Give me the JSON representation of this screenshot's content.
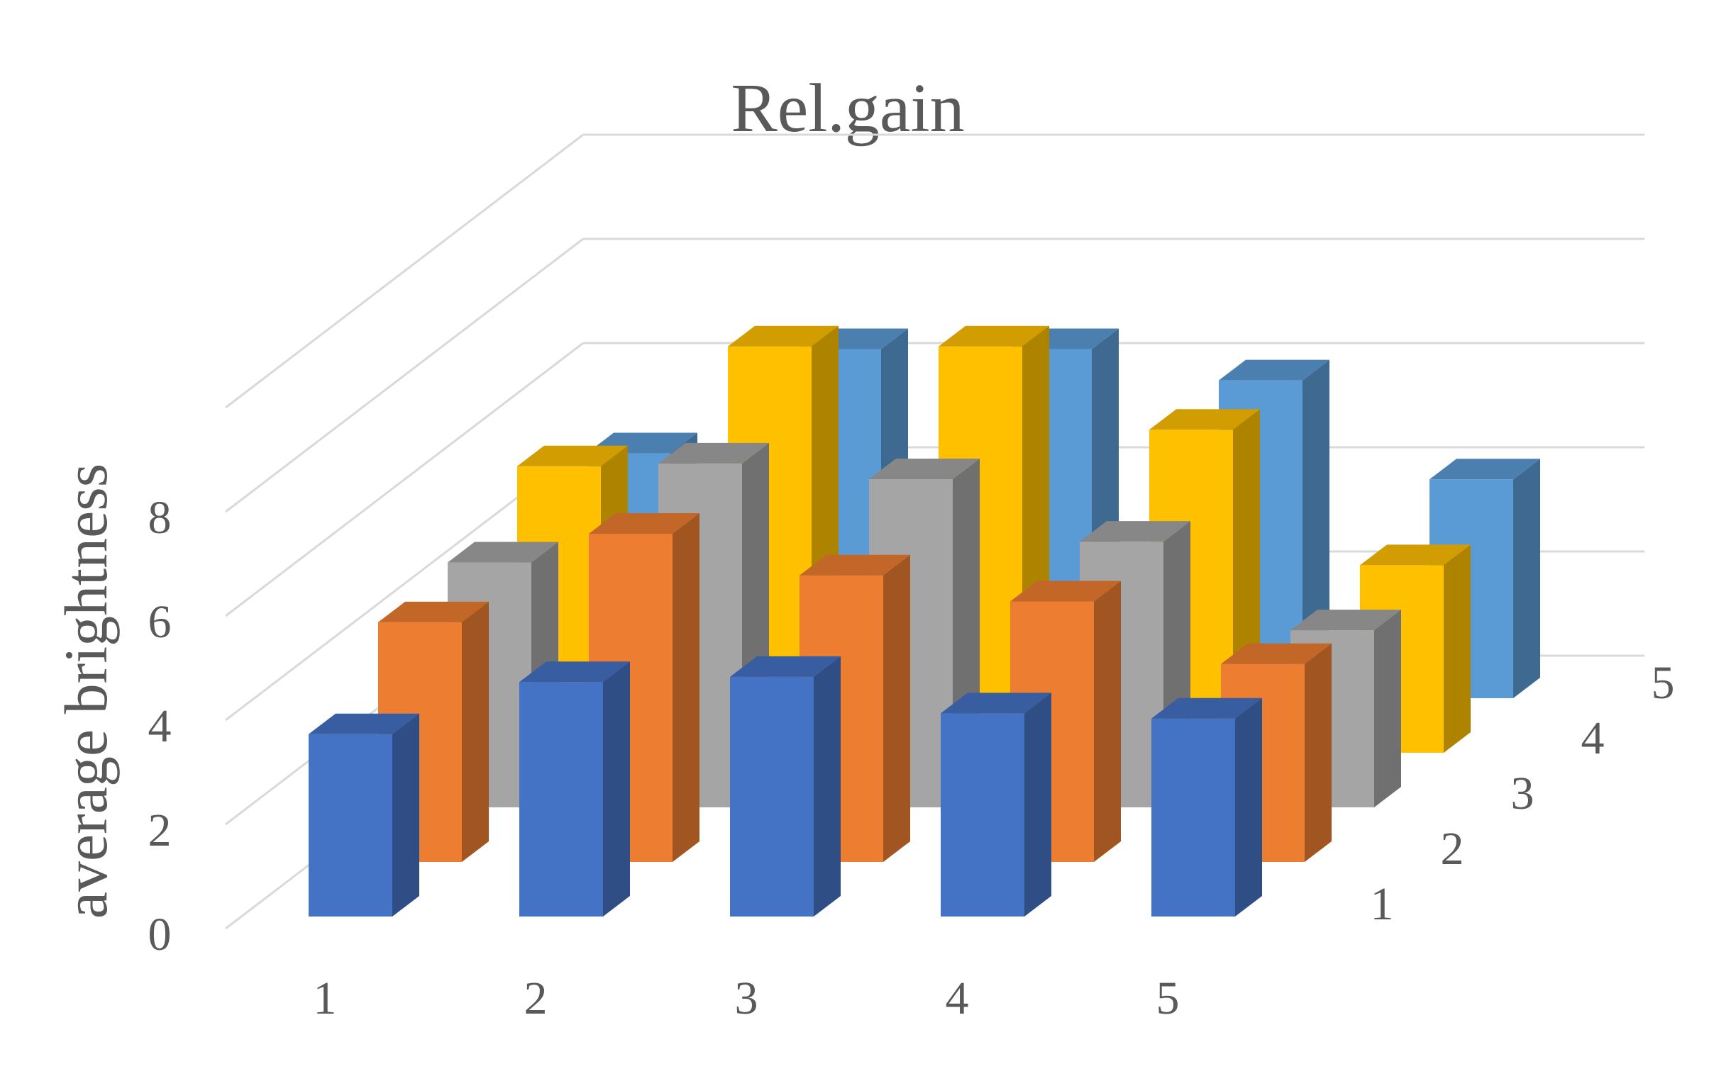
{
  "chart_data": {
    "type": "bar",
    "subtype": "3d-column",
    "title": "Rel.gain",
    "xlabel": "",
    "ylabel": "average brightness",
    "zlabel": "",
    "categories": [
      "1",
      "2",
      "3",
      "4",
      "5"
    ],
    "yticks": [
      "0",
      "2",
      "4",
      "6",
      "8"
    ],
    "ylim": [
      0,
      10
    ],
    "grid": true,
    "legend": "none",
    "series": [
      {
        "label": "1",
        "color": "#4472c4",
        "values": [
          3.5,
          4.5,
          4.6,
          3.9,
          3.8
        ]
      },
      {
        "label": "2",
        "color": "#ed7d31",
        "values": [
          4.6,
          6.3,
          5.5,
          5.0,
          3.8
        ]
      },
      {
        "label": "3",
        "color": "#a5a5a5",
        "values": [
          4.7,
          6.6,
          6.3,
          5.1,
          3.4
        ]
      },
      {
        "label": "4",
        "color": "#ffc000",
        "values": [
          5.5,
          7.8,
          7.8,
          6.2,
          3.6
        ]
      },
      {
        "label": "5",
        "color": "#5b9bd5",
        "values": [
          4.7,
          6.7,
          6.7,
          6.1,
          4.2
        ]
      }
    ]
  }
}
